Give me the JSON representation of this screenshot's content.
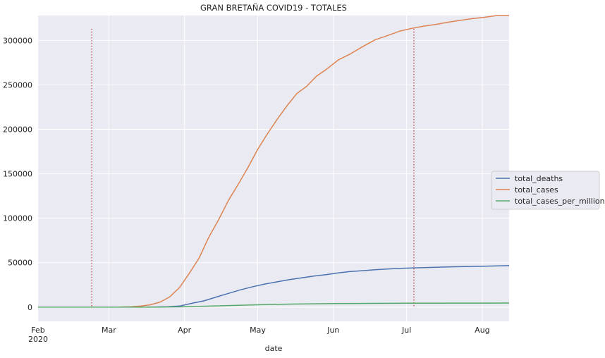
{
  "chart_data": {
    "type": "line",
    "title": "GRAN BRETAÑA COVID19 - TOTALES",
    "xlabel": "date",
    "ylabel": "",
    "x_axis_type": "date",
    "xlim": [
      "2020-02-01",
      "2020-08-12"
    ],
    "ylim": [
      -16000,
      328000
    ],
    "x_ticks": [
      {
        "date": "2020-02-01",
        "label": "Feb",
        "sublabel": "2020"
      },
      {
        "date": "2020-03-01",
        "label": "Mar",
        "sublabel": ""
      },
      {
        "date": "2020-04-01",
        "label": "Apr",
        "sublabel": ""
      },
      {
        "date": "2020-05-01",
        "label": "May",
        "sublabel": ""
      },
      {
        "date": "2020-06-01",
        "label": "Jun",
        "sublabel": ""
      },
      {
        "date": "2020-07-01",
        "label": "Jul",
        "sublabel": ""
      },
      {
        "date": "2020-08-01",
        "label": "Aug",
        "sublabel": ""
      }
    ],
    "y_ticks": [
      0,
      50000,
      100000,
      150000,
      200000,
      250000,
      300000
    ],
    "grid": true,
    "legend_position": "center-right",
    "vertical_lines": [
      {
        "date": "2020-02-23",
        "ymax": 313000,
        "color": "#c44e52",
        "style": "dotted"
      },
      {
        "date": "2020-07-04",
        "ymax": 313000,
        "color": "#c44e52",
        "style": "dotted"
      }
    ],
    "series": [
      {
        "name": "total_deaths",
        "color": "#4c72b0",
        "points": [
          [
            "2020-02-01",
            0
          ],
          [
            "2020-03-01",
            0
          ],
          [
            "2020-03-10",
            1
          ],
          [
            "2020-03-15",
            21
          ],
          [
            "2020-03-20",
            177
          ],
          [
            "2020-03-25",
            465
          ],
          [
            "2020-03-30",
            1228
          ],
          [
            "2020-04-04",
            4320
          ],
          [
            "2020-04-09",
            7097
          ],
          [
            "2020-04-14",
            11329
          ],
          [
            "2020-04-19",
            15464
          ],
          [
            "2020-04-24",
            19506
          ],
          [
            "2020-04-29",
            23000
          ],
          [
            "2020-05-04",
            26000
          ],
          [
            "2020-05-09",
            28500
          ],
          [
            "2020-05-14",
            31000
          ],
          [
            "2020-05-19",
            33000
          ],
          [
            "2020-05-24",
            35000
          ],
          [
            "2020-05-29",
            36500
          ],
          [
            "2020-06-03",
            38500
          ],
          [
            "2020-06-08",
            40000
          ],
          [
            "2020-06-13",
            41000
          ],
          [
            "2020-06-18",
            42000
          ],
          [
            "2020-06-23",
            42800
          ],
          [
            "2020-06-28",
            43500
          ],
          [
            "2020-07-03",
            44000
          ],
          [
            "2020-07-13",
            44900
          ],
          [
            "2020-07-23",
            45500
          ],
          [
            "2020-08-02",
            46000
          ],
          [
            "2020-08-12",
            46700
          ]
        ]
      },
      {
        "name": "total_cases",
        "color": "#dd8452",
        "points": [
          [
            "2020-02-01",
            2
          ],
          [
            "2020-02-20",
            9
          ],
          [
            "2020-03-01",
            35
          ],
          [
            "2020-03-05",
            115
          ],
          [
            "2020-03-10",
            373
          ],
          [
            "2020-03-14",
            1140
          ],
          [
            "2020-03-18",
            2626
          ],
          [
            "2020-03-22",
            5683
          ],
          [
            "2020-03-26",
            11658
          ],
          [
            "2020-03-30",
            22141
          ],
          [
            "2020-04-03",
            38168
          ],
          [
            "2020-04-07",
            55242
          ],
          [
            "2020-04-11",
            78991
          ],
          [
            "2020-04-15",
            98476
          ],
          [
            "2020-04-19",
            120067
          ],
          [
            "2020-04-23",
            138078
          ],
          [
            "2020-04-27",
            157149
          ],
          [
            "2020-05-01",
            177454
          ],
          [
            "2020-05-05",
            194990
          ],
          [
            "2020-05-09",
            211364
          ],
          [
            "2020-05-13",
            226463
          ],
          [
            "2020-05-17",
            240161
          ],
          [
            "2020-05-21",
            248293
          ],
          [
            "2020-05-25",
            259559
          ],
          [
            "2020-05-29",
            267240
          ],
          [
            "2020-06-03",
            277985
          ],
          [
            "2020-06-08",
            284868
          ],
          [
            "2020-06-13",
            292950
          ],
          [
            "2020-06-18",
            300469
          ],
          [
            "2020-06-23",
            305289
          ],
          [
            "2020-06-28",
            310250
          ],
          [
            "2020-07-03",
            313483
          ],
          [
            "2020-07-08",
            316000
          ],
          [
            "2020-07-13",
            318000
          ],
          [
            "2020-07-18",
            320500
          ],
          [
            "2020-07-23",
            322500
          ],
          [
            "2020-07-28",
            324500
          ],
          [
            "2020-08-02",
            326000
          ],
          [
            "2020-08-07",
            328000
          ],
          [
            "2020-08-12",
            330500
          ]
        ]
      },
      {
        "name": "total_cases_per_million",
        "color": "#55a868",
        "points": [
          [
            "2020-02-01",
            0
          ],
          [
            "2020-03-01",
            1
          ],
          [
            "2020-03-20",
            56
          ],
          [
            "2020-04-01",
            430
          ],
          [
            "2020-04-15",
            1450
          ],
          [
            "2020-05-01",
            2610
          ],
          [
            "2020-05-15",
            3400
          ],
          [
            "2020-06-01",
            3980
          ],
          [
            "2020-06-15",
            4240
          ],
          [
            "2020-07-01",
            4400
          ],
          [
            "2020-07-15",
            4480
          ],
          [
            "2020-08-01",
            4560
          ],
          [
            "2020-08-12",
            4640
          ]
        ]
      }
    ]
  }
}
